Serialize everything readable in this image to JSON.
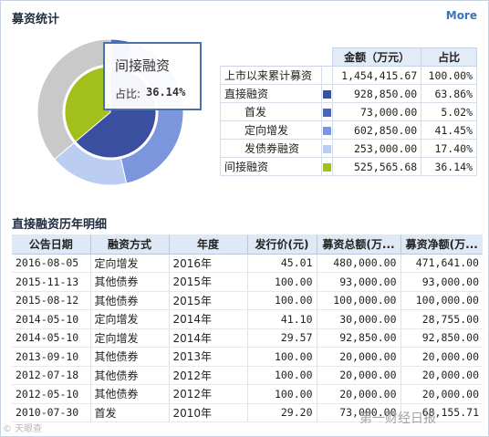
{
  "header": {
    "title": "募资统计",
    "more_label": "More"
  },
  "tooltip": {
    "name": "间接融资",
    "ratio_label": "占比:",
    "ratio_value": "36.14%"
  },
  "pie": {
    "inner": [
      {
        "name": "直接融资",
        "share": 63.86,
        "color": "#3a4fa0"
      },
      {
        "name": "间接融资",
        "share": 36.14,
        "color": "#a3bf1c"
      }
    ],
    "outer": [
      {
        "name": "首发",
        "share": 5.02,
        "color": "#4a66b8"
      },
      {
        "name": "定向增发",
        "share": 41.45,
        "color": "#7b96dc"
      },
      {
        "name": "发债券融资",
        "share": 17.4,
        "color": "#bccdf2"
      },
      {
        "name": "间接融资",
        "share": 36.14,
        "color": "#c9c9c9"
      }
    ]
  },
  "summary": {
    "headers": [
      "金额（万元）",
      "占比"
    ],
    "rows": [
      {
        "label": "上市以来累计募资",
        "swatch": "",
        "amount": "1,454,415.67",
        "pct": "100.00%",
        "indent": false
      },
      {
        "label": "直接融资",
        "swatch": "#3a4fa0",
        "amount": "928,850.00",
        "pct": "63.86%",
        "indent": false
      },
      {
        "label": "首发",
        "swatch": "#4a66b8",
        "amount": "73,000.00",
        "pct": "5.02%",
        "indent": true
      },
      {
        "label": "定向增发",
        "swatch": "#7b96dc",
        "amount": "602,850.00",
        "pct": "41.45%",
        "indent": true
      },
      {
        "label": "发债券融资",
        "swatch": "#bccdf2",
        "amount": "253,000.00",
        "pct": "17.40%",
        "indent": true
      },
      {
        "label": "间接融资",
        "swatch": "#a3bf1c",
        "amount": "525,565.68",
        "pct": "36.14%",
        "indent": false
      }
    ]
  },
  "history": {
    "title": "直接融资历年明细",
    "headers": [
      "公告日期",
      "融资方式",
      "年度",
      "发行价(元)",
      "募资总额(万...",
      "募资净额(万..."
    ],
    "rows": [
      [
        "2016-08-05",
        "定向增发",
        "2016年",
        "45.01",
        "480,000.00",
        "471,641.00"
      ],
      [
        "2015-11-13",
        "其他债券",
        "2015年",
        "100.00",
        "93,000.00",
        "93,000.00"
      ],
      [
        "2015-08-12",
        "其他债券",
        "2015年",
        "100.00",
        "100,000.00",
        "100,000.00"
      ],
      [
        "2014-05-10",
        "定向增发",
        "2014年",
        "41.10",
        "30,000.00",
        "28,755.00"
      ],
      [
        "2014-05-10",
        "定向增发",
        "2014年",
        "29.57",
        "92,850.00",
        "92,850.00"
      ],
      [
        "2013-09-10",
        "其他债券",
        "2013年",
        "100.00",
        "20,000.00",
        "20,000.00"
      ],
      [
        "2012-07-18",
        "其他债券",
        "2012年",
        "100.00",
        "20,000.00",
        "20,000.00"
      ],
      [
        "2012-05-10",
        "其他债券",
        "2012年",
        "100.00",
        "20,000.00",
        "20,000.00"
      ],
      [
        "2010-07-30",
        "首发",
        "2010年",
        "29.20",
        "73,000.00",
        "68,155.71"
      ]
    ]
  },
  "watermarks": {
    "left": "© 天眼查",
    "right": "第一财经日报"
  }
}
